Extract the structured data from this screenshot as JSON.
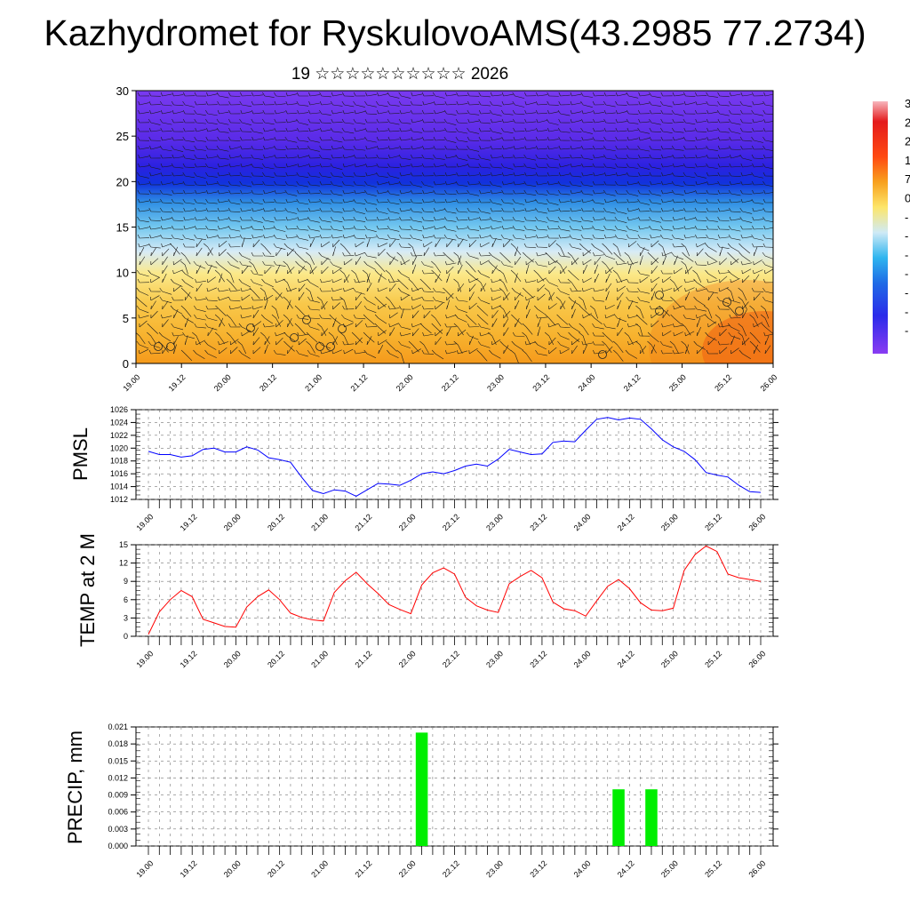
{
  "title": "Kazhydromet for RyskulovoAMS(43.2985 77.2734)",
  "subtitle": "19 ☆☆☆☆☆☆☆☆☆☆ 2026",
  "colorbar": {
    "labels": [
      "3",
      "2",
      "2",
      "1",
      "7",
      "0",
      "-",
      "-",
      "-",
      "-",
      "-",
      "-",
      "-"
    ]
  },
  "chart_data": [
    {
      "type": "heatmap",
      "name": "vertical-cross-section",
      "title": "",
      "x_ticks": [
        "19.00",
        "19.12",
        "20.00",
        "20.12",
        "21.00",
        "21.12",
        "22.00",
        "22.12",
        "23.00",
        "23.12",
        "24.00",
        "24.12",
        "25.00",
        "25.12",
        "26.00"
      ],
      "y_ticks": [
        "0",
        "5",
        "10",
        "15",
        "20",
        "25",
        "30"
      ],
      "ylim": [
        0,
        30
      ],
      "description_levels": "temperature shading with wind barbs"
    },
    {
      "type": "line",
      "ylabel": "PMSL",
      "ylim": [
        1012,
        1026
      ],
      "y_ticks": [
        "1012",
        "1014",
        "1016",
        "1018",
        "1020",
        "1022",
        "1024",
        "1026"
      ],
      "x_ticks": [
        "19.00",
        "19.12",
        "20.00",
        "20.12",
        "21.00",
        "21.12",
        "22.00",
        "22.12",
        "23.00",
        "23.12",
        "24.00",
        "24.12",
        "25.00",
        "25.12",
        "26.00"
      ],
      "color": "#0000ff",
      "values": [
        1019.5,
        1019,
        1019,
        1018.6,
        1018.8,
        1019.8,
        1020,
        1019.4,
        1019.4,
        1020.2,
        1019.7,
        1018.5,
        1018.2,
        1017.8,
        1015.5,
        1013.4,
        1012.9,
        1013.5,
        1013.3,
        1012.5,
        1013.5,
        1014.5,
        1014.4,
        1014.2,
        1015,
        1016,
        1016.3,
        1016,
        1016.5,
        1017.2,
        1017.5,
        1017.2,
        1018.3,
        1019.8,
        1019.4,
        1019,
        1019.1,
        1020.9,
        1021.1,
        1021,
        1022.8,
        1024.5,
        1024.8,
        1024.4,
        1024.7,
        1024.5,
        1023,
        1021.3,
        1020.2,
        1019.5,
        1018.2,
        1016.2,
        1015.8,
        1015.5,
        1014.2,
        1013.2,
        1013.1
      ]
    },
    {
      "type": "line",
      "ylabel": "TEMP at 2 M",
      "ylim": [
        0,
        15
      ],
      "y_ticks": [
        "0",
        "3",
        "6",
        "9",
        "12",
        "15"
      ],
      "x_ticks": [
        "19.00",
        "19.12",
        "20.00",
        "20.12",
        "21.00",
        "21.12",
        "22.00",
        "22.12",
        "23.00",
        "23.12",
        "24.00",
        "24.12",
        "25.00",
        "25.12",
        "26.00"
      ],
      "color": "#ff0000",
      "values": [
        0.3,
        4,
        6,
        7.5,
        6.5,
        2.8,
        2.2,
        1.6,
        1.5,
        4.8,
        6.5,
        7.6,
        6,
        3.8,
        3.1,
        2.7,
        2.5,
        7.2,
        9.1,
        10.5,
        8.6,
        7,
        5.2,
        4.4,
        3.7,
        8.4,
        10.4,
        11.2,
        10.2,
        6.4,
        5,
        4.3,
        3.9,
        8.6,
        9.8,
        10.8,
        9.6,
        5.6,
        4.5,
        4.2,
        3.3,
        5.8,
        8.2,
        9.3,
        7.8,
        5.5,
        4.3,
        4.2,
        4.6,
        10.8,
        13.4,
        14.8,
        13.9,
        10.2,
        9.6,
        9.3,
        9
      ]
    },
    {
      "type": "bar",
      "ylabel": "PRECIP, mm",
      "ylim": [
        0,
        0.021
      ],
      "y_ticks": [
        "0.000",
        "0.003",
        "0.006",
        "0.009",
        "0.012",
        "0.015",
        "0.018",
        "0.021"
      ],
      "x_ticks": [
        "19.00",
        "19.12",
        "20.00",
        "20.12",
        "21.00",
        "21.12",
        "22.00",
        "22.12",
        "23.00",
        "23.12",
        "24.00",
        "24.12",
        "25.00",
        "25.12",
        "26.00"
      ],
      "color": "#00ee00",
      "bars": [
        {
          "t": 25,
          "value": 0.02
        },
        {
          "t": 43,
          "value": 0.01
        },
        {
          "t": 46,
          "value": 0.01
        }
      ]
    }
  ]
}
